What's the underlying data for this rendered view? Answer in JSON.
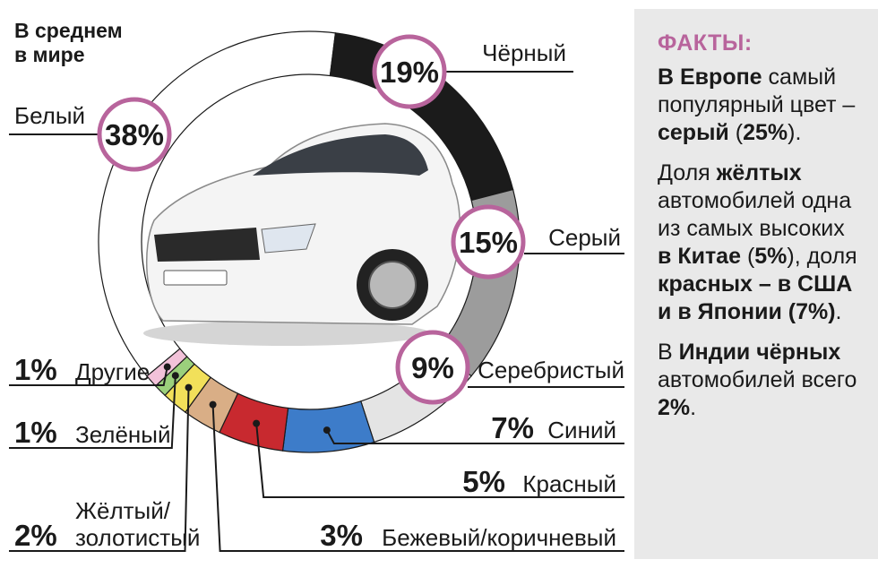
{
  "chart_data": {
    "type": "pie",
    "title": "В среднем\nв мире",
    "unit": "%",
    "slices": [
      {
        "label": "Белый",
        "value": 38,
        "color": "#ffffff"
      },
      {
        "label": "Чёрный",
        "value": 19,
        "color": "#1b1b1b"
      },
      {
        "label": "Серый",
        "value": 15,
        "color": "#9c9c9c"
      },
      {
        "label": "Серебристый",
        "value": 9,
        "color": "#e4e4e4"
      },
      {
        "label": "Синий",
        "value": 7,
        "color": "#3d7cc9"
      },
      {
        "label": "Красный",
        "value": 5,
        "color": "#c8292f"
      },
      {
        "label": "Бежевый/коричневый",
        "value": 3,
        "color": "#d9ae86"
      },
      {
        "label": "Жёлтый/\nзолотистый",
        "value": 2,
        "color": "#f2e05a"
      },
      {
        "label": "Зелёный",
        "value": 1,
        "color": "#9bd07c"
      },
      {
        "label": "Другие",
        "value": 1,
        "color": "#f2c2d9"
      }
    ],
    "highlight_color": "#b8649c"
  },
  "facts": {
    "title": "ФАКТЫ:",
    "europe": {
      "b1": "В Европе",
      "t1": " самый популярный цвет – ",
      "b2": "серый",
      "t2": " (",
      "b3": "25%",
      "t3": ")."
    },
    "china": {
      "t1": "Доля ",
      "b1": "жёлтых",
      "t2": " автомобилей одна из самых высоких ",
      "b2": "в Китае",
      "t3": " (",
      "b3": "5%",
      "t4": "), доля ",
      "b4": "красных – в США и в Японии (7%)",
      "t5": "."
    },
    "india": {
      "t1": "В ",
      "b1": "Индии чёрных",
      "t2": " автомобилей всего ",
      "b2": "2%",
      "t3": "."
    }
  }
}
